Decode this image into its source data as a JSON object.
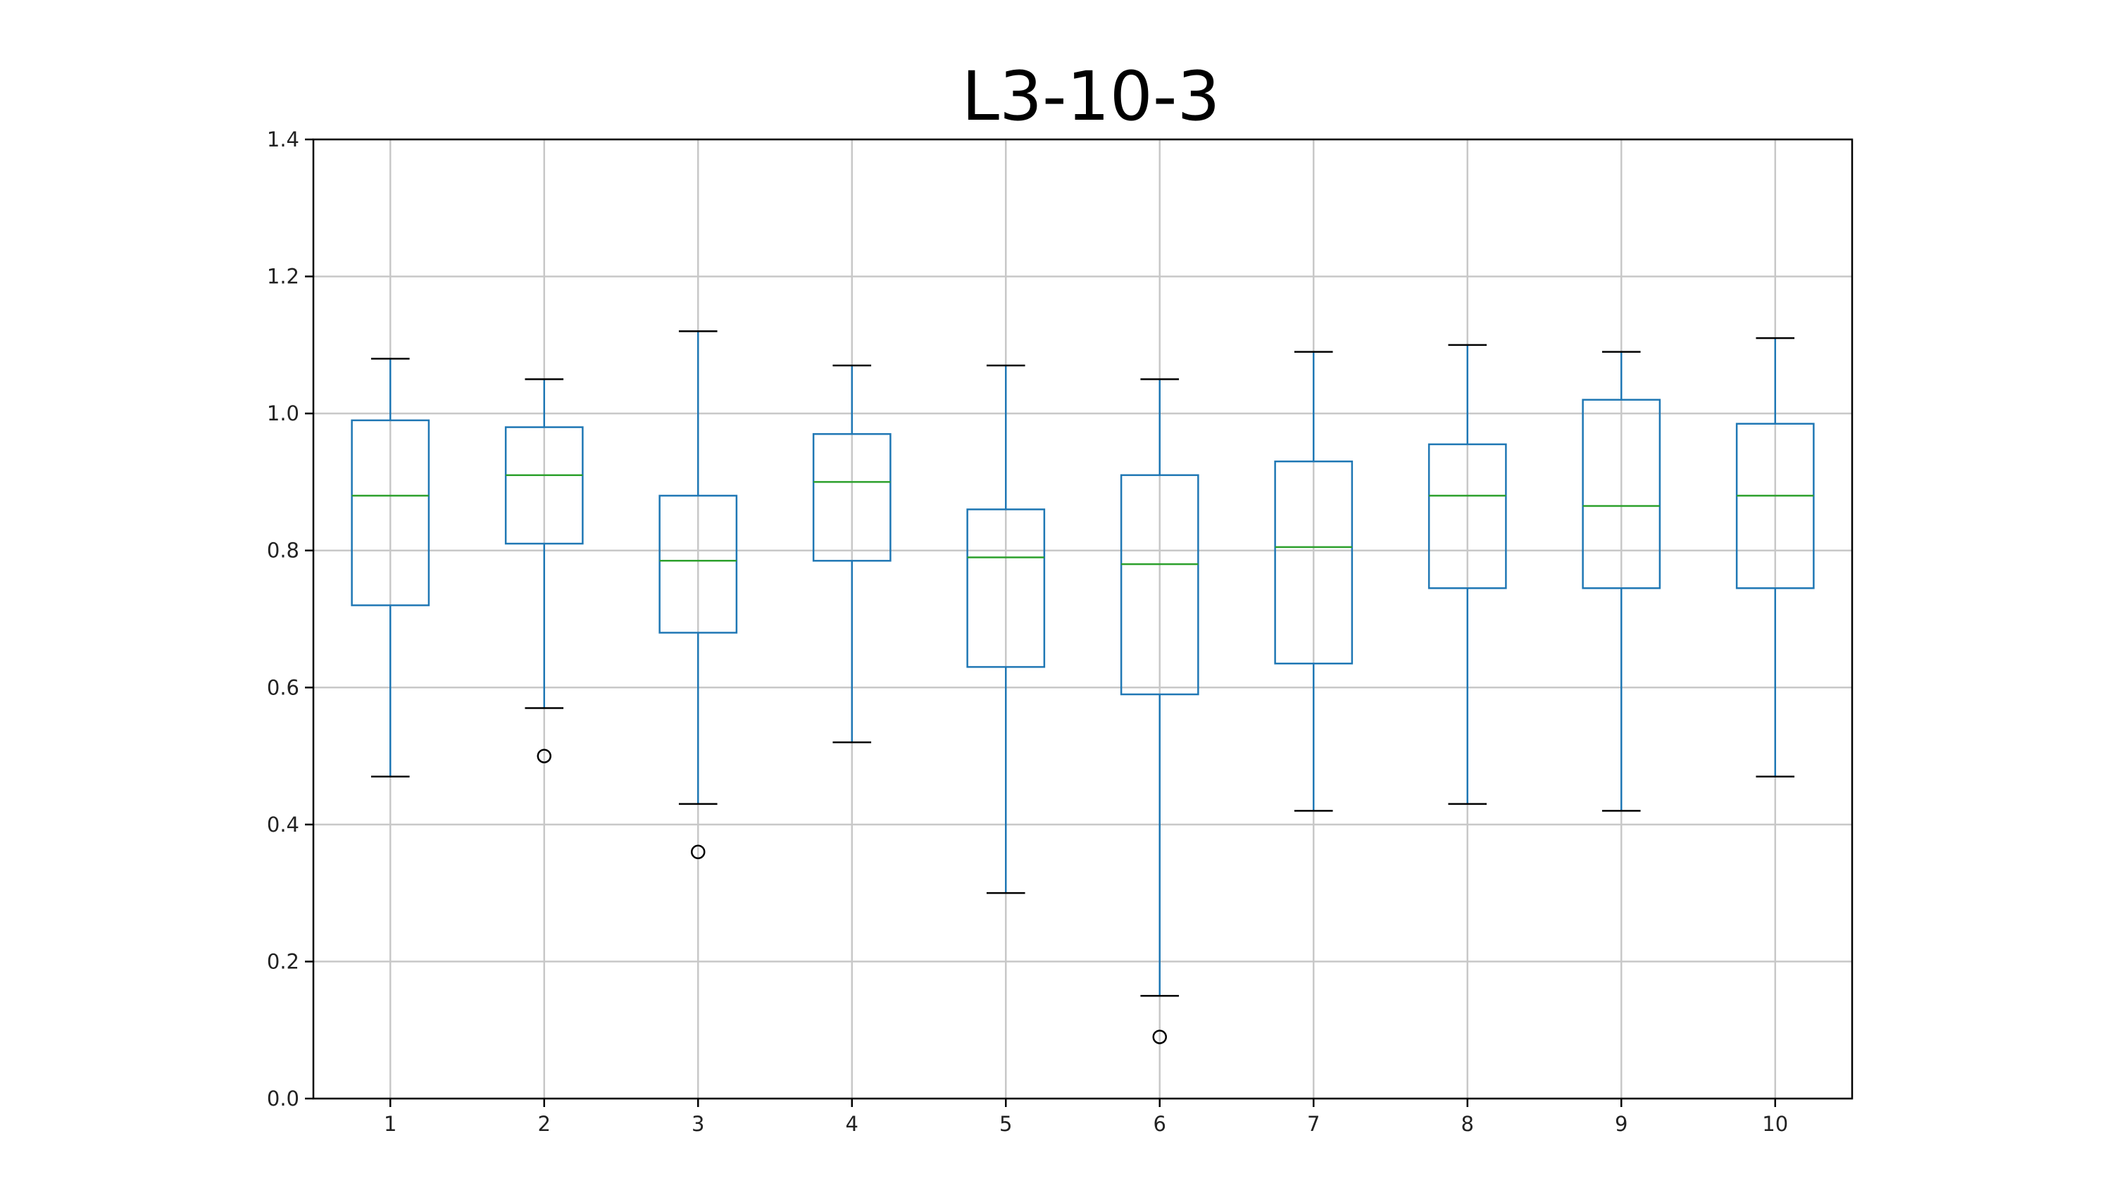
{
  "colors": {
    "box": "#1f77b4",
    "median": "#2ca02c",
    "whisker": "#1f77b4",
    "cap": "#000000",
    "flier": "#000000",
    "grid": "#c8c8c8",
    "axes": "#000000"
  },
  "chart_data": {
    "type": "box",
    "title": "L3-10-3",
    "xlabel": "",
    "ylabel": "",
    "ylim": [
      0.0,
      1.4
    ],
    "yticks": [
      "0.0",
      "0.2",
      "0.4",
      "0.6",
      "0.8",
      "1.0",
      "1.2",
      "1.4"
    ],
    "categories": [
      "1",
      "2",
      "3",
      "4",
      "5",
      "6",
      "7",
      "8",
      "9",
      "10"
    ],
    "grid": true,
    "boxes": [
      {
        "whisker_low": 0.47,
        "q1": 0.72,
        "median": 0.88,
        "q3": 0.99,
        "whisker_high": 1.08,
        "fliers": []
      },
      {
        "whisker_low": 0.57,
        "q1": 0.81,
        "median": 0.91,
        "q3": 0.98,
        "whisker_high": 1.05,
        "fliers": [
          0.5
        ]
      },
      {
        "whisker_low": 0.43,
        "q1": 0.68,
        "median": 0.785,
        "q3": 0.88,
        "whisker_high": 1.12,
        "fliers": [
          0.36
        ]
      },
      {
        "whisker_low": 0.52,
        "q1": 0.785,
        "median": 0.9,
        "q3": 0.97,
        "whisker_high": 1.07,
        "fliers": []
      },
      {
        "whisker_low": 0.3,
        "q1": 0.63,
        "median": 0.79,
        "q3": 0.86,
        "whisker_high": 1.07,
        "fliers": []
      },
      {
        "whisker_low": 0.15,
        "q1": 0.59,
        "median": 0.78,
        "q3": 0.91,
        "whisker_high": 1.05,
        "fliers": [
          0.09
        ]
      },
      {
        "whisker_low": 0.42,
        "q1": 0.635,
        "median": 0.805,
        "q3": 0.93,
        "whisker_high": 1.09,
        "fliers": []
      },
      {
        "whisker_low": 0.43,
        "q1": 0.745,
        "median": 0.88,
        "q3": 0.955,
        "whisker_high": 1.1,
        "fliers": []
      },
      {
        "whisker_low": 0.42,
        "q1": 0.745,
        "median": 0.865,
        "q3": 1.02,
        "whisker_high": 1.09,
        "fliers": []
      },
      {
        "whisker_low": 0.47,
        "q1": 0.745,
        "median": 0.88,
        "q3": 0.985,
        "whisker_high": 1.11,
        "fliers": []
      }
    ]
  }
}
